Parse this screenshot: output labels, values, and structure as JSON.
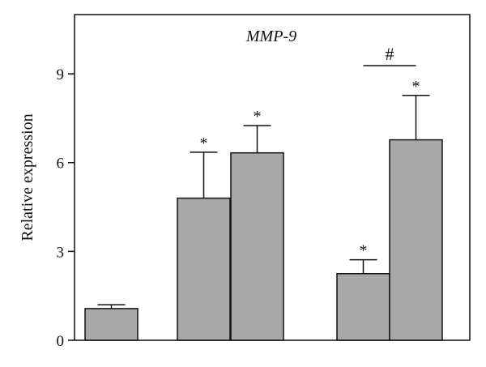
{
  "chart_data": {
    "type": "bar",
    "title": "MMP-9",
    "ylabel": "Relative expression",
    "xlabel": "",
    "ylim": [
      0,
      11
    ],
    "yticks": [
      0,
      3,
      6,
      9
    ],
    "bar_color": "#a8a8a8",
    "bars": [
      {
        "value": 1.07,
        "error": 0.13,
        "annotation": ""
      },
      {
        "value": 4.8,
        "error": 1.55,
        "annotation": "*"
      },
      {
        "value": 6.33,
        "error": 0.92,
        "annotation": "*"
      },
      {
        "value": 2.25,
        "error": 0.47,
        "annotation": "*"
      },
      {
        "value": 6.77,
        "error": 1.5,
        "annotation": "*"
      }
    ],
    "comparisons": [
      {
        "from_bar": 3,
        "to_bar": 4,
        "label": "#"
      }
    ]
  }
}
